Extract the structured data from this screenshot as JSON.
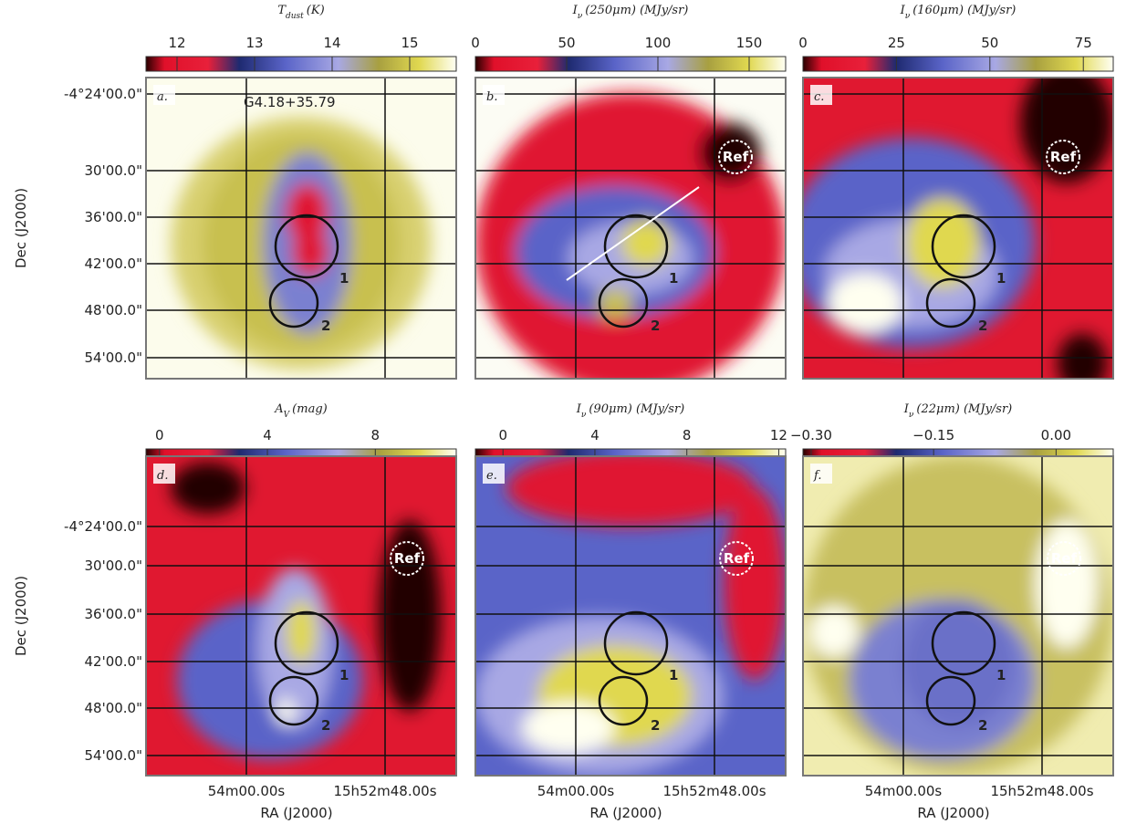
{
  "figure": {
    "title": "G4.18+35.79",
    "y_axis_label": "Dec (J2000)",
    "x_axis_label": "RA (J2000)",
    "dec_ticks": [
      "-4°24'00.0\"",
      "30'00.0\"",
      "36'00.0\"",
      "42'00.0\"",
      "48'00.0\"",
      "54'00.0\""
    ],
    "ra_ticks": [
      "54m00.00s",
      "15h52m48.00s"
    ],
    "region_labels": [
      "1",
      "2",
      "Ref"
    ],
    "panels": [
      {
        "letter": "a.",
        "symbol": "T",
        "subscript": "dust",
        "suffix": "(K)",
        "colorbar": {
          "lim": [
            11.6,
            15.6
          ],
          "ticks": [
            12,
            13,
            14,
            15
          ]
        }
      },
      {
        "letter": "b.",
        "symbol": "I",
        "subscript": "ν",
        "suffix": "(250μm) (MJy/sr)",
        "colorbar": {
          "lim": [
            0,
            170
          ],
          "ticks": [
            0,
            50,
            100,
            150
          ]
        }
      },
      {
        "letter": "c.",
        "symbol": "I",
        "subscript": "ν",
        "suffix": "(160μm) (MJy/sr)",
        "colorbar": {
          "lim": [
            0,
            83
          ],
          "ticks": [
            0,
            25,
            50,
            75
          ]
        }
      },
      {
        "letter": "d.",
        "symbol": "A",
        "subscript": "V",
        "suffix": "(mag)",
        "colorbar": {
          "lim": [
            -0.5,
            11
          ],
          "ticks": [
            0,
            4,
            8
          ]
        }
      },
      {
        "letter": "e.",
        "symbol": "I",
        "subscript": "ν",
        "suffix": "(90μm) (MJy/sr)",
        "colorbar": {
          "lim": [
            -1.2,
            12.3
          ],
          "ticks": [
            0,
            4,
            8,
            12
          ]
        }
      },
      {
        "letter": "f.",
        "symbol": "I",
        "subscript": "ν",
        "suffix": "(22μm) (MJy/sr)",
        "colorbar": {
          "lim": [
            -0.31,
            0.07
          ],
          "ticks": [
            {
              "value": -0.3,
              "label": "−0.30"
            },
            {
              "value": -0.15,
              "label": "−0.15"
            },
            {
              "value": 0,
              "label": "0.00"
            }
          ]
        }
      }
    ]
  }
}
